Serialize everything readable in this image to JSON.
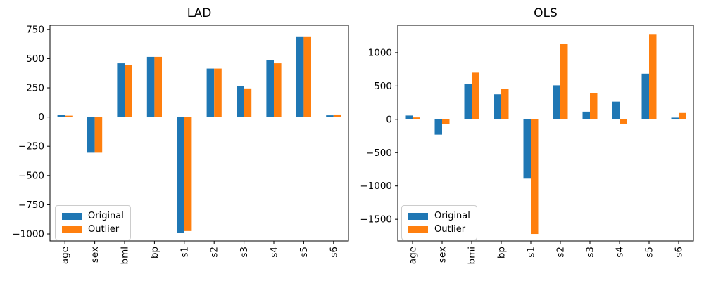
{
  "figure": {
    "background": "#ffffff",
    "axis_color": "#000000",
    "series_colors": {
      "original": "#1f77b4",
      "outlier": "#ff7f0e"
    }
  },
  "chart_data": [
    {
      "type": "bar",
      "title": "LAD",
      "categories": [
        "age",
        "sex",
        "bmi",
        "bp",
        "s1",
        "s2",
        "s3",
        "s4",
        "s5",
        "s6"
      ],
      "series": [
        {
          "name": "Original",
          "color": "#1f77b4",
          "values": [
            20,
            -305,
            460,
            515,
            -990,
            415,
            265,
            490,
            690,
            15
          ]
        },
        {
          "name": "Outlier",
          "color": "#ff7f0e",
          "values": [
            12,
            -305,
            445,
            515,
            -975,
            415,
            245,
            460,
            690,
            22
          ]
        }
      ],
      "xlabel": "",
      "ylabel": "",
      "yticks": [
        750,
        500,
        250,
        0,
        -250,
        -500,
        -750,
        -1000
      ],
      "ylim": [
        -1060,
        785
      ],
      "grid": false,
      "legend_position": "lower left",
      "xtick_rotation": 90
    },
    {
      "type": "bar",
      "title": "OLS",
      "categories": [
        "age",
        "sex",
        "bmi",
        "bp",
        "s1",
        "s2",
        "s3",
        "s4",
        "s5",
        "s6"
      ],
      "series": [
        {
          "name": "Original",
          "color": "#1f77b4",
          "values": [
            57,
            -230,
            530,
            375,
            -890,
            510,
            115,
            265,
            685,
            25
          ]
        },
        {
          "name": "Outlier",
          "color": "#ff7f0e",
          "values": [
            28,
            -75,
            700,
            460,
            -1720,
            1130,
            390,
            -65,
            1270,
            95
          ]
        }
      ],
      "xlabel": "",
      "ylabel": "",
      "yticks": [
        1000,
        500,
        0,
        -500,
        -1000,
        -1500
      ],
      "ylim": [
        -1825,
        1410
      ],
      "grid": false,
      "legend_position": "lower left",
      "xtick_rotation": 90
    }
  ]
}
